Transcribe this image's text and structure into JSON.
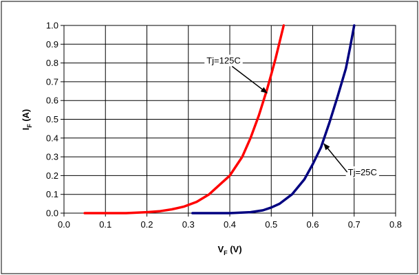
{
  "chart_data": {
    "type": "line",
    "title": "",
    "xlabel": {
      "main": "V",
      "sub": "F",
      "unit": " (V)"
    },
    "ylabel": {
      "main": "I",
      "sub": "F",
      "unit": " (A)"
    },
    "xlim": [
      0,
      0.8
    ],
    "ylim": [
      0,
      1.0
    ],
    "xticks": [
      0.0,
      0.1,
      0.2,
      0.3,
      0.4,
      0.5,
      0.6,
      0.7,
      0.8
    ],
    "yticks": [
      0.0,
      0.1,
      0.2,
      0.3,
      0.4,
      0.5,
      0.6,
      0.7,
      0.8,
      0.9,
      1.0
    ],
    "xtick_labels": [
      "0.0",
      "0.1",
      "0.2",
      "0.3",
      "0.4",
      "0.5",
      "0.6",
      "0.7",
      "0.8"
    ],
    "ytick_labels": [
      "0.0",
      "0.1",
      "0.2",
      "0.3",
      "0.4",
      "0.5",
      "0.6",
      "0.7",
      "0.8",
      "0.9",
      "1.0"
    ],
    "grid": true,
    "series": [
      {
        "color": "#ff0000",
        "x": [
          0.05,
          0.1,
          0.15,
          0.2,
          0.23,
          0.26,
          0.29,
          0.32,
          0.35,
          0.38,
          0.4,
          0.43,
          0.45,
          0.47,
          0.49,
          0.5,
          0.51,
          0.52,
          0.53
        ],
        "y": [
          0.0,
          0.0,
          0.0,
          0.005,
          0.01,
          0.02,
          0.035,
          0.06,
          0.1,
          0.16,
          0.2,
          0.3,
          0.4,
          0.52,
          0.66,
          0.74,
          0.82,
          0.91,
          1.0
        ]
      },
      {
        "color": "#000080",
        "x": [
          0.31,
          0.4,
          0.45,
          0.48,
          0.5,
          0.52,
          0.55,
          0.58,
          0.6,
          0.62,
          0.64,
          0.66,
          0.68,
          0.69,
          0.7
        ],
        "y": [
          0.0,
          0.0,
          0.005,
          0.015,
          0.03,
          0.05,
          0.1,
          0.18,
          0.26,
          0.35,
          0.48,
          0.62,
          0.77,
          0.88,
          1.0
        ]
      }
    ],
    "annotations": [
      {
        "text": "Tj=125C",
        "x": 0.385,
        "y": 0.815,
        "arrow_to": [
          0.49,
          0.64
        ],
        "series": 0
      },
      {
        "text": "Tj=25C",
        "x": 0.72,
        "y": 0.22,
        "arrow_to": [
          0.627,
          0.37
        ],
        "series": 1
      }
    ],
    "colors": {
      "frame": "#000000",
      "grid": "#000000",
      "background": "#ffffff"
    }
  }
}
